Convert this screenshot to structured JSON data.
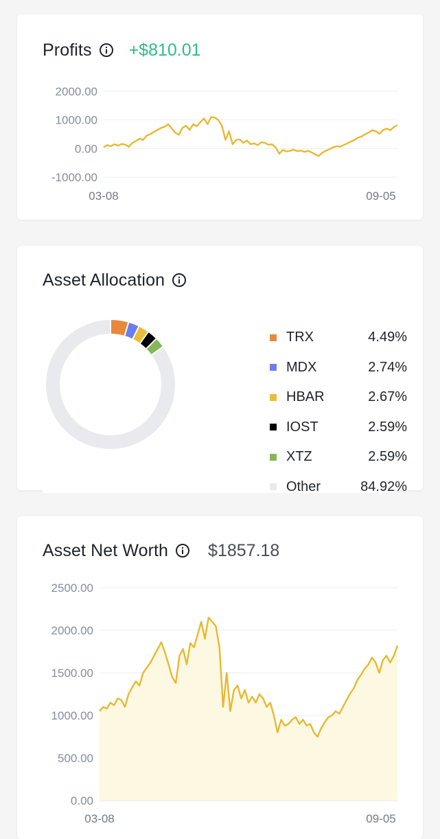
{
  "profits": {
    "title": "Profits",
    "value": "+$810.01",
    "value_color": "#2ebd85"
  },
  "allocation": {
    "title": "Asset Allocation",
    "items": [
      {
        "name": "TRX",
        "pct": "4.49%",
        "value": 4.49,
        "color": "#e8893a"
      },
      {
        "name": "MDX",
        "pct": "2.74%",
        "value": 2.74,
        "color": "#6b7ef0"
      },
      {
        "name": "HBAR",
        "pct": "2.67%",
        "value": 2.67,
        "color": "#e9bd3c"
      },
      {
        "name": "IOST",
        "pct": "2.59%",
        "value": 2.59,
        "color": "#000000"
      },
      {
        "name": "XTZ",
        "pct": "2.59%",
        "value": 2.59,
        "color": "#86b85a"
      },
      {
        "name": "Other",
        "pct": "84.92%",
        "value": 84.92,
        "color": "#e9eaee"
      }
    ]
  },
  "networth": {
    "title": "Asset Net Worth",
    "value": "$1857.18"
  },
  "chart_data": [
    {
      "type": "line",
      "name": "profits",
      "xlabels": [
        "03-08",
        "09-05"
      ],
      "yticks": [
        "2000.00",
        "1000.00",
        "0.00",
        "-1000.00"
      ],
      "ylim": [
        -1000,
        2000
      ],
      "line_color": "#e8b830",
      "values": [
        50,
        120,
        80,
        150,
        100,
        160,
        140,
        60,
        200,
        260,
        350,
        300,
        450,
        500,
        580,
        650,
        720,
        760,
        850,
        700,
        550,
        480,
        720,
        800,
        650,
        850,
        780,
        920,
        1050,
        850,
        1100,
        1080,
        1000,
        800,
        300,
        600,
        150,
        300,
        320,
        200,
        280,
        150,
        180,
        120,
        220,
        200,
        130,
        150,
        40,
        -180,
        -50,
        -100,
        -80,
        -40,
        -90,
        -70,
        -120,
        -80,
        -130,
        -200,
        -260,
        -150,
        -80,
        -20,
        40,
        80,
        60,
        120,
        180,
        240,
        300,
        380,
        420,
        500,
        560,
        640,
        600,
        520,
        650,
        700,
        640,
        750,
        820
      ]
    },
    {
      "type": "area",
      "name": "asset net worth",
      "xlabels": [
        "03-08",
        "09-05"
      ],
      "yticks": [
        "2500.00",
        "2000.00",
        "1500.00",
        "1000.00",
        "500.00",
        "0.00"
      ],
      "ylim": [
        0,
        2500
      ],
      "line_color": "#e8b830",
      "fill_color": "#fdf8e1",
      "values": [
        1050,
        1100,
        1080,
        1150,
        1120,
        1200,
        1180,
        1100,
        1250,
        1330,
        1400,
        1350,
        1500,
        1560,
        1620,
        1700,
        1780,
        1860,
        1740,
        1600,
        1450,
        1380,
        1700,
        1780,
        1600,
        1850,
        1800,
        1950,
        2100,
        1900,
        2150,
        2100,
        2050,
        1800,
        1100,
        1500,
        1050,
        1300,
        1350,
        1200,
        1300,
        1150,
        1220,
        1150,
        1250,
        1200,
        1100,
        1150,
        1000,
        800,
        950,
        880,
        900,
        950,
        980,
        900,
        950,
        880,
        900,
        800,
        750,
        850,
        920,
        980,
        1000,
        1050,
        1020,
        1100,
        1180,
        1260,
        1320,
        1420,
        1480,
        1550,
        1600,
        1680,
        1620,
        1500,
        1650,
        1700,
        1620,
        1700,
        1820
      ]
    }
  ]
}
